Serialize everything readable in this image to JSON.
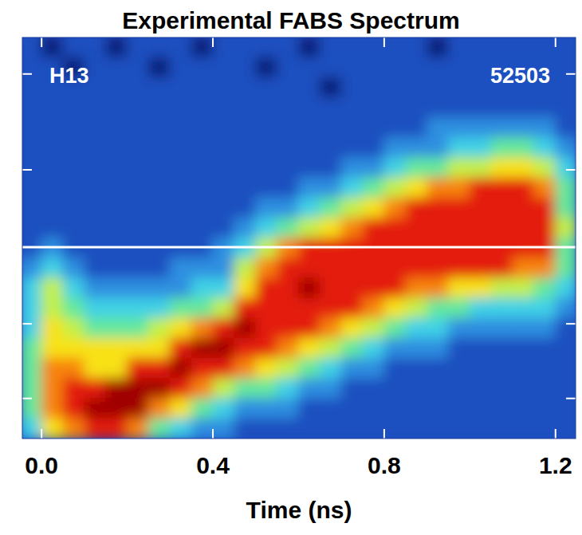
{
  "chart_data": {
    "type": "heatmap",
    "title": "Experimental FABS Spectrum",
    "xlabel": "Time (ns)",
    "annotations": [
      "H13",
      "52503"
    ],
    "xlim": [
      -0.045,
      1.247
    ],
    "ylim": [
      0,
      10
    ],
    "xticks": [
      {
        "value": 0,
        "label": "0.0"
      },
      0.4,
      0.8,
      1.2
    ],
    "yticks": [
      1.0,
      2.86,
      6.7,
      9.09
    ],
    "tick_labels": "x",
    "hline": 4.77,
    "zlim": [
      0,
      9
    ],
    "x_bins": [
      -0.05,
      0,
      0.05,
      0.1,
      0.15,
      0.2,
      0.25,
      0.3,
      0.35,
      0.4,
      0.45,
      0.5,
      0.55,
      0.6,
      0.65,
      0.7,
      0.75,
      0.8,
      0.85,
      0.9,
      0.95,
      1,
      1.05,
      1.1,
      1.15,
      1.2,
      1.25
    ],
    "y_bins": [
      10,
      9.5,
      9,
      8.5,
      8,
      7.5,
      7,
      6.5,
      6,
      5.5,
      5,
      4.5,
      4,
      3.5,
      3,
      2.5,
      2,
      1.5,
      1,
      0.5,
      0
    ],
    "cells": [
      [
        1,
        0,
        1,
        1,
        0,
        1,
        1,
        1,
        0,
        1,
        1,
        1,
        1,
        0,
        1,
        1,
        1,
        1,
        1,
        0,
        1,
        1,
        1,
        1,
        1,
        1
      ],
      [
        1,
        1,
        0,
        1,
        1,
        1,
        0,
        1,
        1,
        1,
        1,
        0,
        1,
        1,
        1,
        1,
        1,
        1,
        1,
        1,
        1,
        1,
        1,
        1,
        1,
        1
      ],
      [
        1,
        1,
        1,
        1,
        1,
        1,
        1,
        1,
        1,
        1,
        1,
        1,
        1,
        1,
        0,
        1,
        1,
        1,
        1,
        1,
        1,
        1,
        1,
        1,
        1,
        1
      ],
      [
        1,
        1,
        1,
        1,
        1,
        1,
        1,
        1,
        1,
        1,
        1,
        1,
        1,
        1,
        1,
        1,
        1,
        1,
        1,
        1,
        1,
        1,
        1,
        1,
        1,
        1
      ],
      [
        1,
        1,
        1,
        1,
        1,
        1,
        1,
        1,
        1,
        1,
        1,
        1,
        1,
        1,
        1,
        1,
        1,
        1,
        1,
        2,
        2,
        2,
        2,
        2,
        2,
        1
      ],
      [
        1,
        1,
        1,
        1,
        1,
        1,
        1,
        1,
        1,
        1,
        1,
        1,
        1,
        1,
        1,
        1,
        1,
        2,
        2,
        2,
        3,
        3,
        4,
        4,
        3,
        2
      ],
      [
        1,
        1,
        1,
        1,
        1,
        1,
        1,
        1,
        1,
        1,
        1,
        1,
        1,
        1,
        1,
        2,
        2,
        3,
        4,
        4,
        5,
        5,
        6,
        6,
        5,
        3
      ],
      [
        1,
        1,
        1,
        1,
        1,
        1,
        1,
        1,
        1,
        1,
        1,
        1,
        1,
        2,
        2,
        3,
        4,
        5,
        6,
        7,
        7,
        8,
        8,
        8,
        7,
        4
      ],
      [
        1,
        1,
        1,
        1,
        1,
        1,
        1,
        1,
        1,
        1,
        1,
        2,
        2,
        3,
        4,
        5,
        6,
        7,
        8,
        8,
        8,
        8,
        8,
        8,
        8,
        4
      ],
      [
        1,
        1,
        1,
        1,
        1,
        1,
        1,
        1,
        1,
        1,
        2,
        3,
        4,
        5,
        6,
        7,
        8,
        8,
        8,
        8,
        8,
        8,
        8,
        8,
        8,
        5
      ],
      [
        1,
        2,
        1,
        1,
        1,
        1,
        1,
        1,
        1,
        2,
        3,
        5,
        7,
        8,
        8,
        8,
        8,
        8,
        8,
        8,
        8,
        8,
        8,
        8,
        8,
        4
      ],
      [
        2,
        3,
        2,
        1,
        1,
        1,
        1,
        2,
        2,
        2,
        5,
        7,
        8,
        8,
        8,
        8,
        8,
        8,
        8,
        8,
        8,
        8,
        8,
        7,
        7,
        4
      ],
      [
        3,
        5,
        3,
        2,
        2,
        2,
        2,
        2,
        3,
        3,
        6,
        8,
        8,
        9,
        8,
        8,
        8,
        8,
        7,
        7,
        6,
        6,
        5,
        5,
        4,
        3
      ],
      [
        3,
        5,
        4,
        3,
        3,
        3,
        3,
        4,
        4,
        5,
        8,
        8,
        8,
        8,
        8,
        8,
        7,
        6,
        5,
        4,
        4,
        3,
        3,
        3,
        3,
        2
      ],
      [
        3,
        6,
        5,
        4,
        4,
        4,
        5,
        6,
        7,
        8,
        9,
        8,
        8,
        8,
        7,
        6,
        5,
        4,
        3,
        3,
        2,
        2,
        2,
        2,
        2,
        1
      ],
      [
        4,
        6,
        6,
        6,
        6,
        6,
        6,
        8,
        9,
        9,
        8,
        8,
        7,
        6,
        5,
        4,
        3,
        2,
        2,
        2,
        1,
        1,
        1,
        1,
        1,
        1
      ],
      [
        4,
        7,
        7,
        6,
        6,
        8,
        8,
        9,
        8,
        8,
        7,
        6,
        5,
        4,
        3,
        2,
        2,
        1,
        1,
        1,
        1,
        1,
        1,
        1,
        1,
        1
      ],
      [
        4,
        7,
        8,
        8,
        9,
        9,
        9,
        8,
        7,
        5,
        4,
        4,
        3,
        2,
        2,
        1,
        1,
        1,
        1,
        1,
        1,
        1,
        1,
        1,
        1,
        1
      ],
      [
        4,
        7,
        8,
        9,
        9,
        9,
        7,
        6,
        4,
        3,
        2,
        2,
        2,
        1,
        1,
        1,
        1,
        1,
        1,
        1,
        1,
        1,
        1,
        1,
        1,
        1
      ],
      [
        3,
        6,
        7,
        8,
        8,
        7,
        4,
        3,
        2,
        2,
        1,
        1,
        1,
        1,
        1,
        1,
        1,
        1,
        1,
        1,
        1,
        1,
        1,
        1,
        1,
        1
      ]
    ]
  }
}
